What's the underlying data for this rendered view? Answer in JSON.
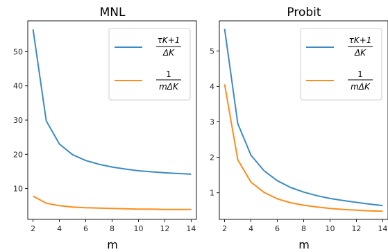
{
  "colors": {
    "series1": "#3b8bc2",
    "series2": "#ff8c1a"
  },
  "chart_data": [
    {
      "type": "line",
      "title": "MNL",
      "xlabel": "m",
      "ylabel": "",
      "xlim": [
        1.6,
        14.4
      ],
      "ylim": [
        1.0,
        59.0
      ],
      "xticks": [
        2,
        4,
        6,
        8,
        10,
        12,
        14
      ],
      "yticks": [
        10,
        20,
        30,
        40,
        50
      ],
      "legend_position": "top-right",
      "x": [
        2,
        3,
        4,
        5,
        6,
        7,
        8,
        9,
        10,
        11,
        12,
        13,
        14
      ],
      "series": [
        {
          "legend_numerator": "τK+1",
          "legend_denominator": "ΔK",
          "values": [
            56.5,
            29.8,
            23.0,
            19.9,
            18.2,
            17.1,
            16.3,
            15.7,
            15.2,
            14.9,
            14.6,
            14.4,
            14.2
          ]
        },
        {
          "legend_numerator": "1",
          "legend_denominator": "mΔK",
          "values": [
            7.8,
            5.7,
            5.0,
            4.6,
            4.4,
            4.3,
            4.2,
            4.1,
            4.0,
            4.0,
            3.9,
            3.9,
            3.9
          ]
        }
      ]
    },
    {
      "type": "line",
      "title": "Probit",
      "xlabel": "m",
      "ylabel": "",
      "xlim": [
        1.6,
        14.4
      ],
      "ylim": [
        0.25,
        5.85
      ],
      "xticks": [
        2,
        4,
        6,
        8,
        10,
        12,
        14
      ],
      "yticks": [
        1,
        2,
        3,
        4,
        5
      ],
      "legend_position": "top-right",
      "x": [
        2,
        3,
        4,
        5,
        6,
        7,
        8,
        9,
        10,
        11,
        12,
        13,
        14
      ],
      "series": [
        {
          "legend_numerator": "τK+1",
          "legend_denominator": "ΔK",
          "values": [
            5.62,
            2.95,
            2.06,
            1.62,
            1.34,
            1.15,
            1.02,
            0.92,
            0.84,
            0.78,
            0.73,
            0.68,
            0.64
          ]
        },
        {
          "legend_numerator": "1",
          "legend_denominator": "mΔK",
          "values": [
            4.06,
            1.93,
            1.3,
            1.01,
            0.83,
            0.72,
            0.65,
            0.6,
            0.56,
            0.53,
            0.51,
            0.49,
            0.48
          ]
        }
      ]
    }
  ]
}
